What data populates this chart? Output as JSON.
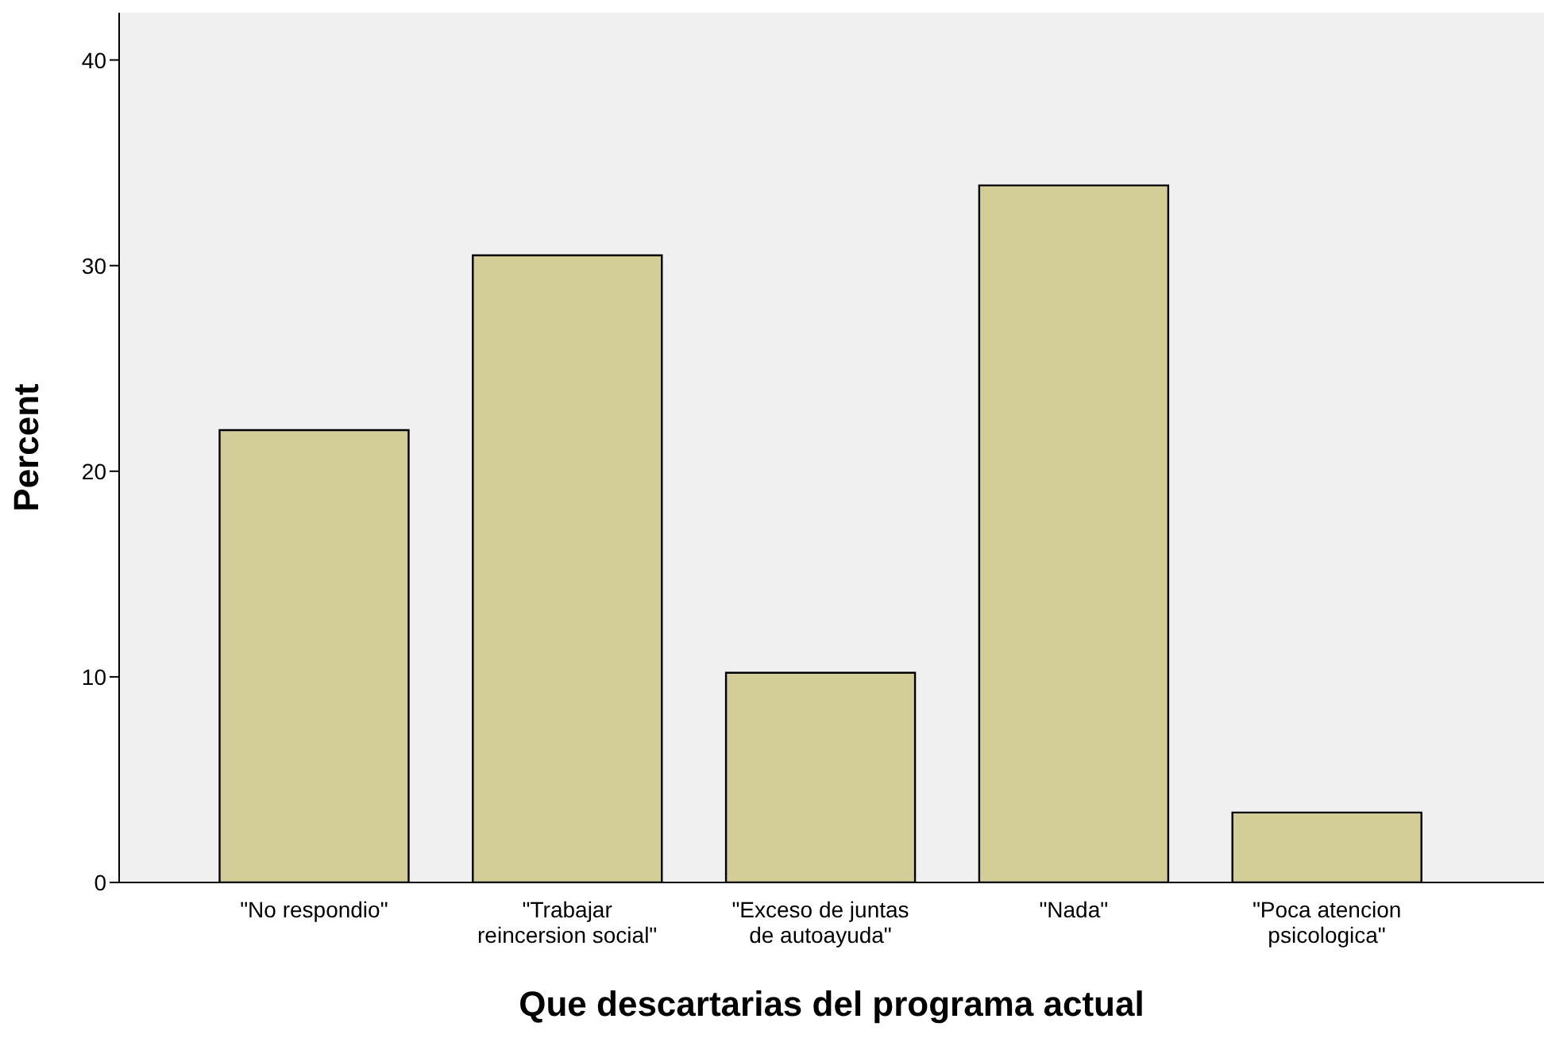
{
  "chart_data": {
    "type": "bar",
    "xlabel": "Que descartarias del programa actual",
    "ylabel": "Percent",
    "categories": [
      "\"No respondio\"",
      "\"Trabajar reincersion social\"",
      "\"Exceso de juntas de autoayuda\"",
      "\"Nada\"",
      "\"Poca atencion psicologica\""
    ],
    "values": [
      22.0,
      30.5,
      10.2,
      33.9,
      3.4
    ],
    "color": "#d3ce97",
    "ylim": [
      0,
      42.3
    ],
    "yticks": [
      0,
      10,
      20,
      30,
      40
    ],
    "grid": false
  }
}
